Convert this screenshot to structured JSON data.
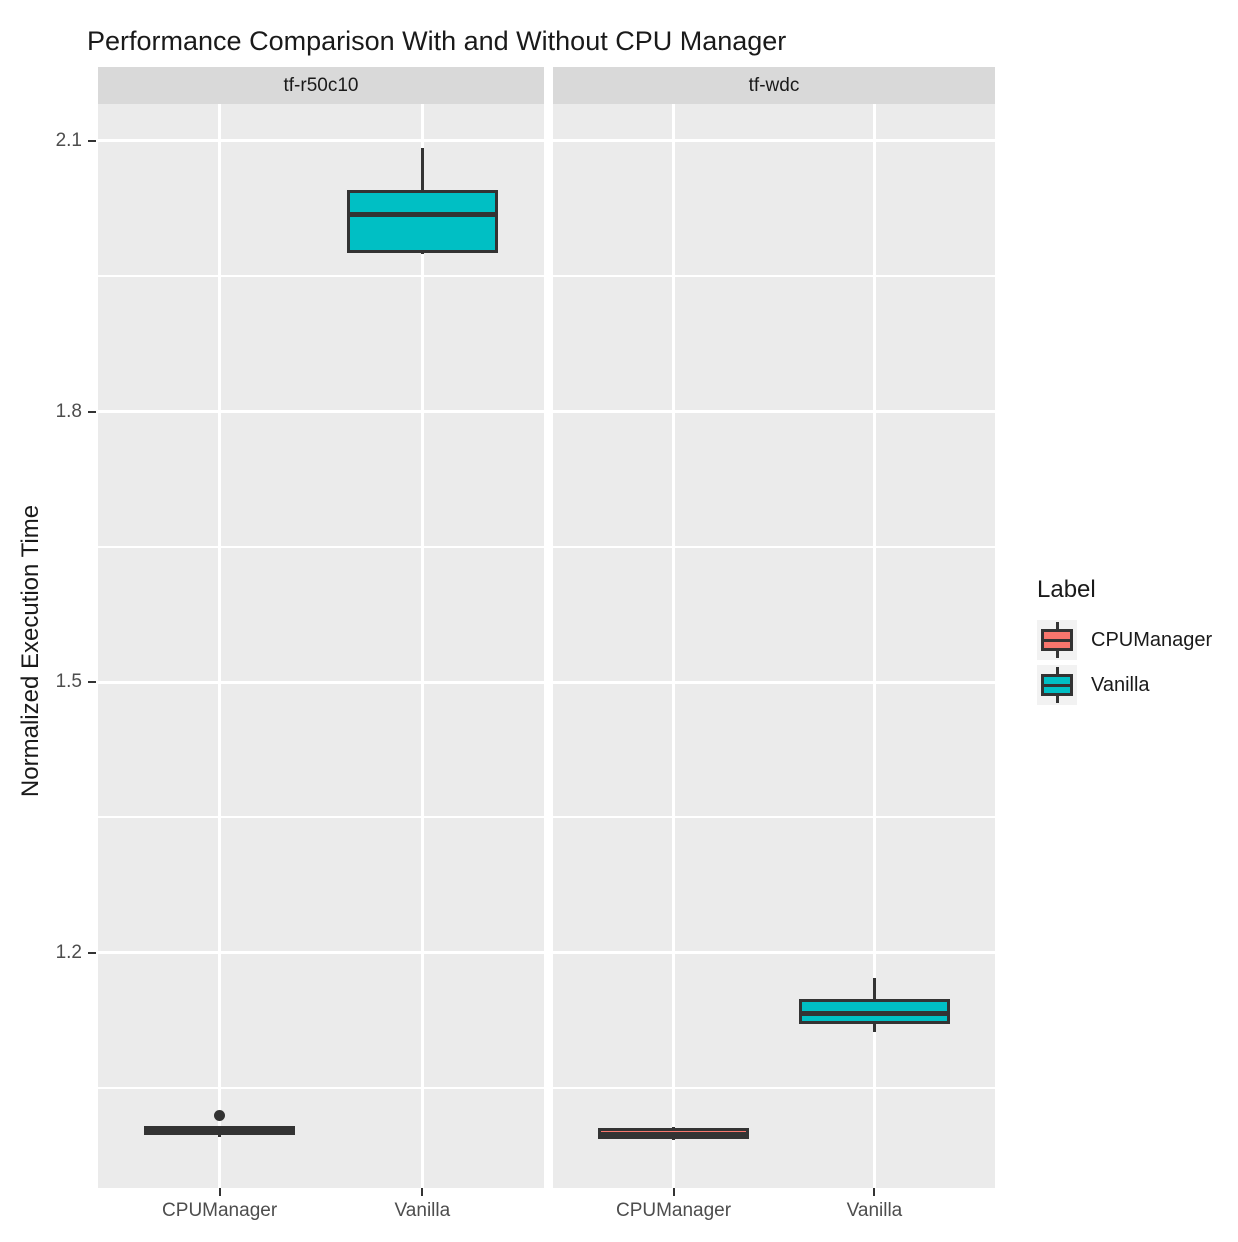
{
  "colors": {
    "cpumanager_fill": "#F8766D",
    "vanilla_fill": "#00BFC4",
    "box_border": "#333333",
    "panel_bg": "#EBEBEB",
    "strip_bg": "#D9D9D9",
    "gridline": "#FFFFFF",
    "tick_label": "#4D4D4D",
    "legend_key_bg": "#F2F2F2",
    "text": "#1A1A1A"
  },
  "chart_data": {
    "type": "boxplot",
    "title": "Performance Comparison With and Without CPU Manager",
    "ylabel": "Normalized Execution Time",
    "xlabel": "",
    "ylim": [
      0.939,
      2.141
    ],
    "grid": true,
    "y_major_ticks": [
      2.1,
      1.8,
      1.5,
      1.2
    ],
    "y_tick_labels": [
      "2.1",
      "1.8",
      "1.5",
      "1.2"
    ],
    "y_minor_ticks": [
      1.95,
      1.65,
      1.35,
      1.05
    ],
    "x_categories": [
      "CPUManager",
      "Vanilla"
    ],
    "legend": {
      "title": "Label",
      "position": "right",
      "entries": [
        {
          "label": "CPUManager",
          "color": "#F8766D"
        },
        {
          "label": "Vanilla",
          "color": "#00BFC4"
        }
      ]
    },
    "facets": [
      {
        "label": "tf-r50c10",
        "boxes": [
          {
            "category": "CPUManager",
            "group": "CPUManager",
            "color": "#F8766D",
            "whisker_low": 0.995,
            "q1": 0.998,
            "median": 1.003,
            "q3": 1.008,
            "whisker_high": 1.008,
            "outliers": [
              1.019
            ]
          },
          {
            "category": "Vanilla",
            "group": "Vanilla",
            "color": "#00BFC4",
            "whisker_low": 1.975,
            "q1": 1.976,
            "median": 2.019,
            "q3": 2.046,
            "whisker_high": 2.092,
            "outliers": []
          }
        ]
      },
      {
        "label": "tf-wdc",
        "boxes": [
          {
            "category": "CPUManager",
            "group": "CPUManager",
            "color": "#F8766D",
            "whisker_low": 0.992,
            "q1": 0.993,
            "median": 0.998,
            "q3": 1.006,
            "whisker_high": 1.007,
            "outliers": []
          },
          {
            "category": "Vanilla",
            "group": "Vanilla",
            "color": "#00BFC4",
            "whisker_low": 1.112,
            "q1": 1.121,
            "median": 1.133,
            "q3": 1.149,
            "whisker_high": 1.172,
            "outliers": []
          }
        ]
      }
    ]
  }
}
